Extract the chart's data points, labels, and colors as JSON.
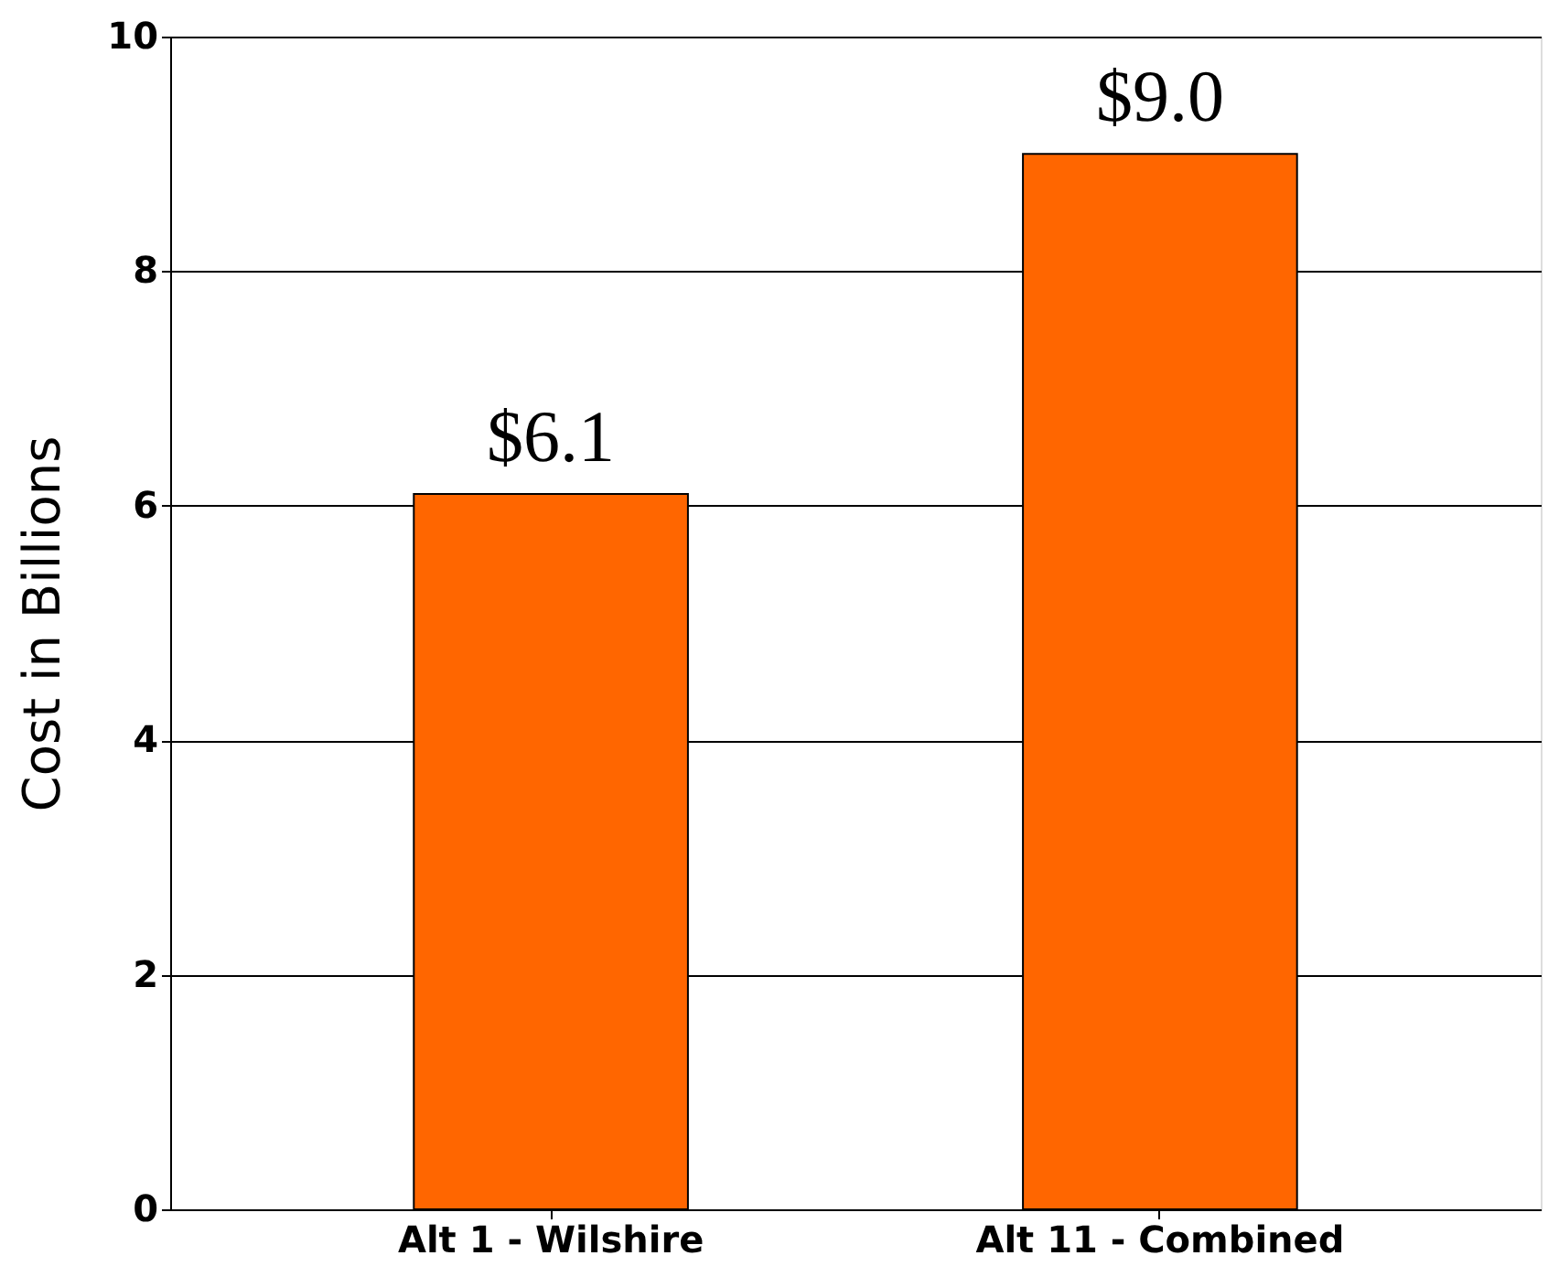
{
  "chart_data": {
    "type": "bar",
    "ylabel": "Cost in Billions",
    "categories": [
      "Alt 1 - Wilshire",
      "Alt 11 - Combined"
    ],
    "values": [
      6.1,
      9.0
    ],
    "value_labels": [
      "$6.1",
      "$9.0"
    ],
    "color": "#ff6600",
    "ylim": [
      0,
      10
    ],
    "yticks": [
      0,
      2,
      4,
      6,
      8,
      10
    ],
    "grid": "y"
  }
}
